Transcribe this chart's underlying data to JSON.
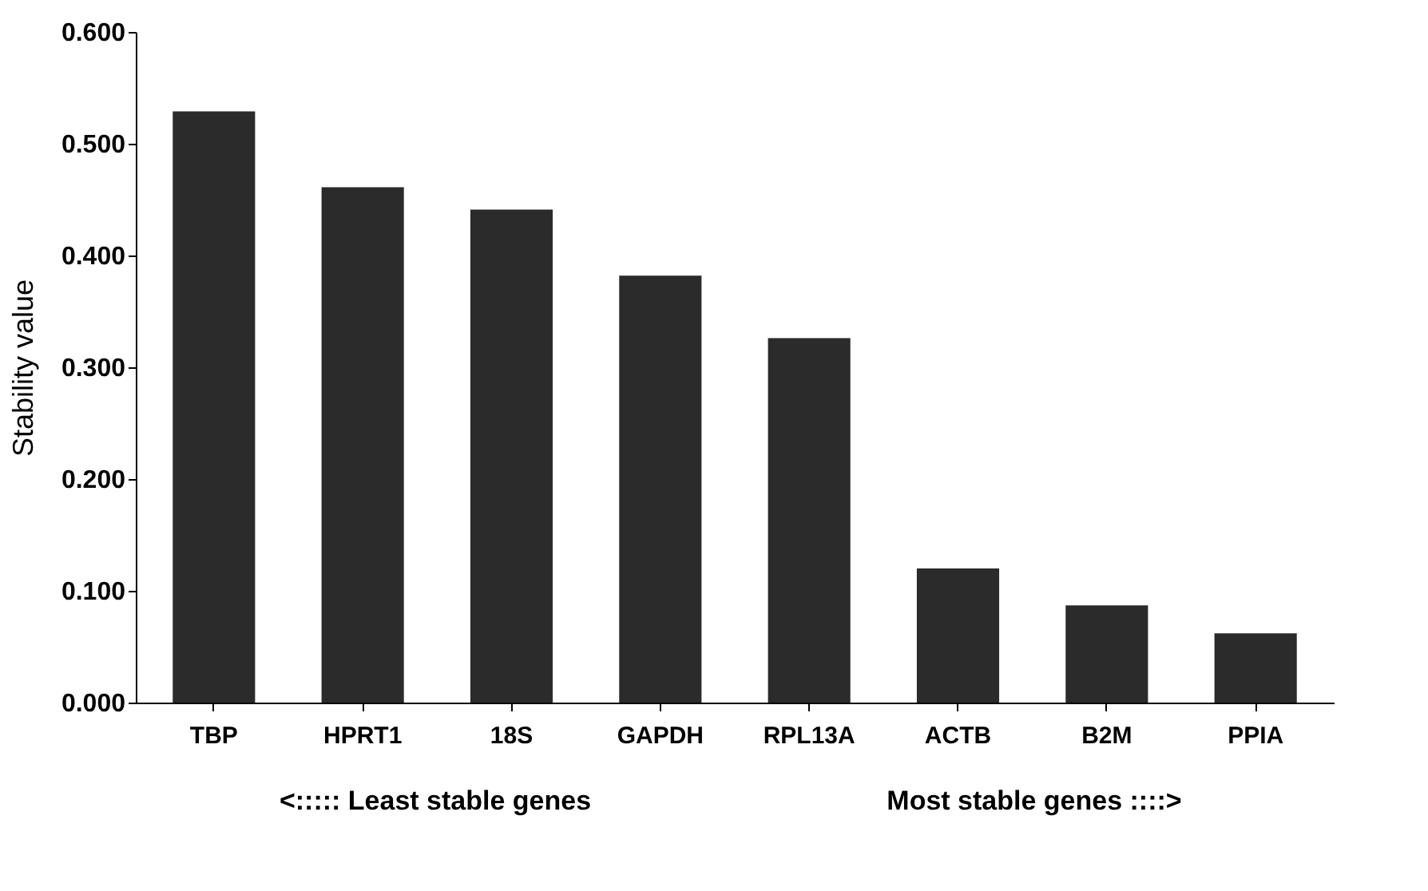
{
  "chart_data": {
    "type": "bar",
    "ylabel": "Stability value",
    "categories": [
      "TBP",
      "HPRT1",
      "18S",
      "GAPDH",
      "RPL13A",
      "ACTB",
      "B2M",
      "PPIA"
    ],
    "values": [
      0.529,
      0.461,
      0.441,
      0.382,
      0.326,
      0.12,
      0.087,
      0.062
    ],
    "color": "#2b2b2b",
    "ylim": [
      0,
      0.6
    ],
    "yticks": [
      {
        "value": 0,
        "label": "0.000"
      },
      {
        "value": 0.1,
        "label": "0.100"
      },
      {
        "value": 0.2,
        "label": "0.200"
      },
      {
        "value": 0.3,
        "label": "0.300"
      },
      {
        "value": 0.4,
        "label": "0.400"
      },
      {
        "value": 0.5,
        "label": "0.500"
      },
      {
        "value": 0.6,
        "label": "0.600"
      }
    ],
    "annotations": [
      "<:::::   Least stable genes",
      "Most stable genes ::::>"
    ],
    "grid": false
  }
}
